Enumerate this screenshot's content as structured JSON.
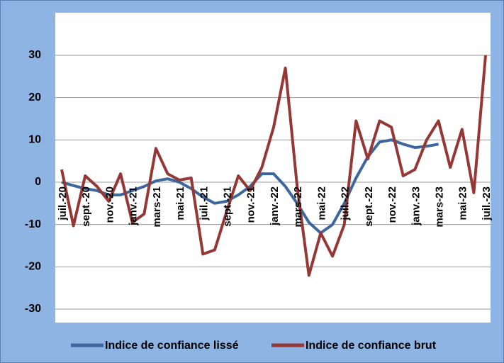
{
  "chart_data": {
    "type": "line",
    "categories": [
      "juil.-20",
      null,
      "sept.-20",
      null,
      "nov.-20",
      null,
      "janv.-21",
      null,
      "mars-21",
      null,
      "mai-21",
      null,
      "juil.-21",
      null,
      "sept.-21",
      null,
      "nov.-21",
      null,
      "janv.-22",
      null,
      "mars-22",
      null,
      "mai-22",
      null,
      "juil.-22",
      null,
      "sept.-22",
      null,
      "nov.-22",
      null,
      "janv.-23",
      null,
      "mars-23",
      null,
      "mai-23",
      null,
      "juil.-23"
    ],
    "series": [
      {
        "name": "Indice de confiance lissé",
        "color": "#3c679e",
        "values": [
          0,
          -0.8,
          -1.5,
          -2,
          -3,
          -3,
          -2,
          -1,
          0.3,
          0.8,
          0,
          -1.5,
          -3.5,
          -5,
          -4.5,
          -3,
          -1,
          2,
          2,
          -1,
          -5,
          -9.5,
          -12,
          -10,
          -5,
          1,
          6,
          9.5,
          10,
          9,
          8.2,
          8.5,
          9,
          null,
          null,
          null,
          null
        ]
      },
      {
        "name": "Indice de confiance brut",
        "color": "#953735",
        "values": [
          3,
          -10.3,
          1.5,
          -1,
          -4.5,
          2,
          -9.5,
          -7.5,
          8,
          2,
          0.5,
          1,
          -17,
          -16,
          -7,
          1.5,
          -2,
          3.5,
          13,
          27,
          -1,
          -22,
          -12,
          -17.5,
          -10,
          14.5,
          5.5,
          14.5,
          13,
          1.5,
          3,
          10,
          14.5,
          3.5,
          12.5,
          -2.5,
          30
        ]
      }
    ],
    "ylim": [
      -30,
      30
    ],
    "yticks": [
      -30,
      -20,
      -10,
      0,
      10,
      20,
      30
    ],
    "grid": true
  }
}
